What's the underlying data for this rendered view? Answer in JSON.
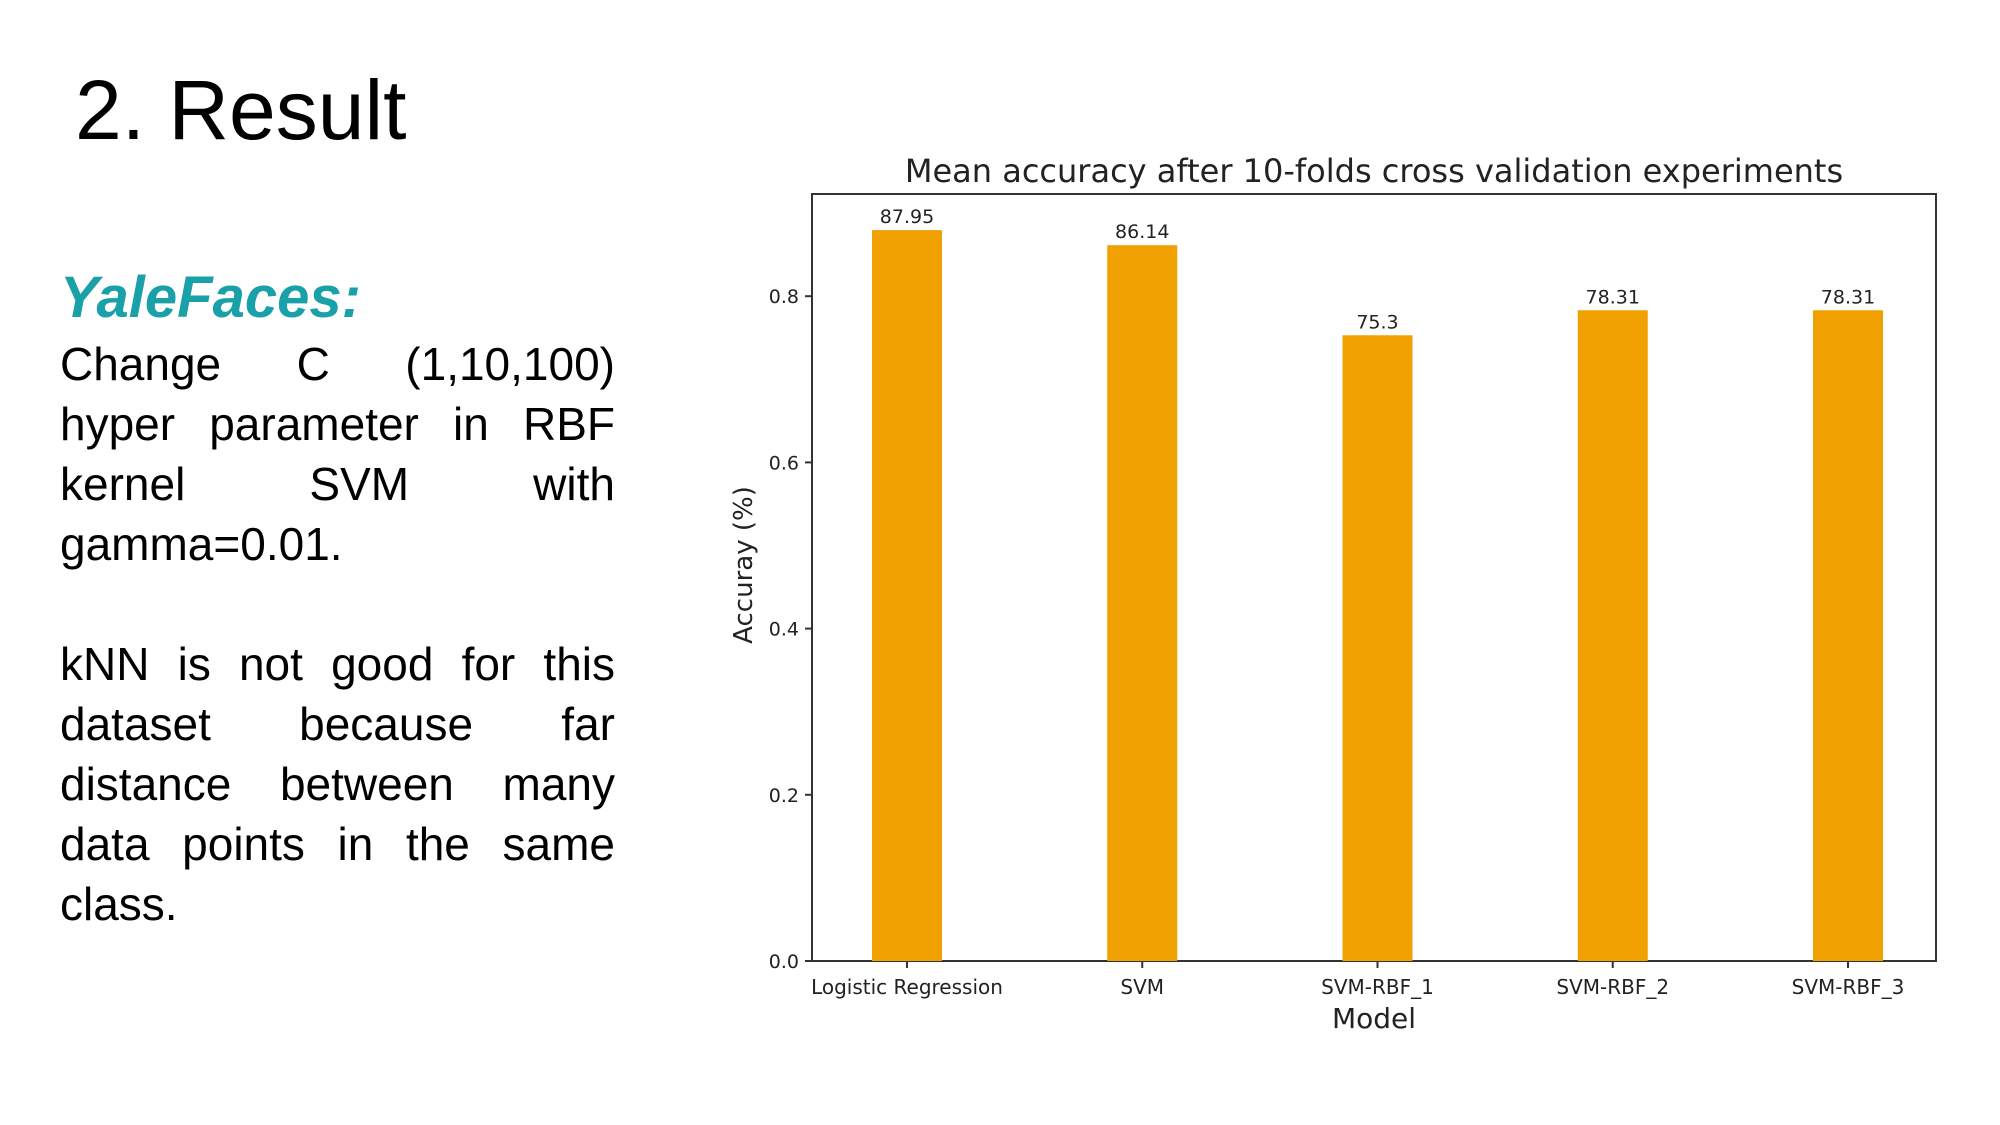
{
  "slide": {
    "title": "2. Result",
    "subtitle": "YaleFaces:",
    "paragraphs": [
      "Change C (1,10,100) hyper parameter in RBF kernel SVM with gamma=0.01.",
      "kNN is not good for this dataset because far distance between many data points in the same class."
    ],
    "subtitle_color": "#1aa0a8"
  },
  "chart_data": {
    "type": "bar",
    "title": "Mean accuracy after 10-folds cross validation experiments",
    "xlabel": "Model",
    "ylabel": "Accuray (%)",
    "categories": [
      "Logistic Regression",
      "SVM",
      "SVM-RBF_1",
      "SVM-RBF_2",
      "SVM-RBF_3"
    ],
    "values": [
      0.8795,
      0.8614,
      0.753,
      0.7831,
      0.7831
    ],
    "data_labels": [
      "87.95",
      "86.14",
      "75.3",
      "78.31",
      "78.31"
    ],
    "yticks": [
      0.0,
      0.2,
      0.4,
      0.6,
      0.8
    ],
    "ytick_labels": [
      "0.0",
      "0.2",
      "0.4",
      "0.6",
      "0.8"
    ],
    "ylim": [
      0,
      0.923
    ],
    "bar_color": "#f0a000",
    "grid": false,
    "legend": "none"
  }
}
